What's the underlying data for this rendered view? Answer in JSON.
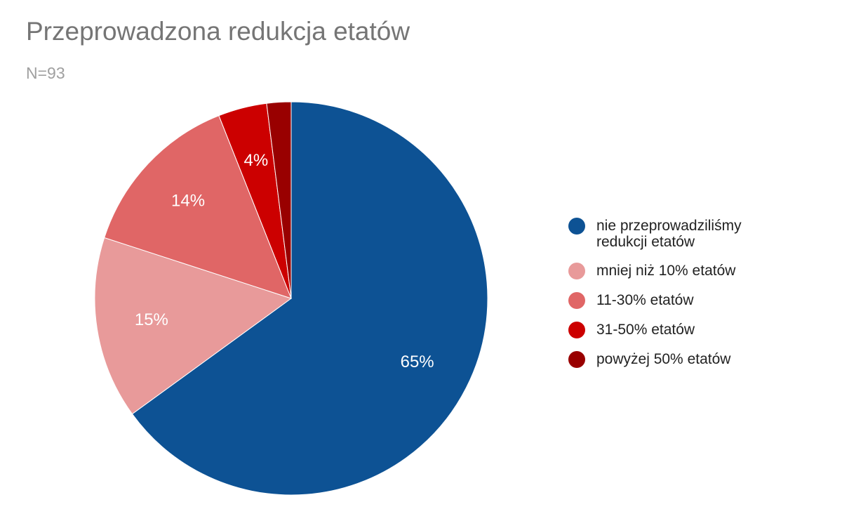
{
  "chart_data": {
    "type": "pie",
    "title": "Przeprowadzona redukcja etatów",
    "subtitle": "N=93",
    "categories": [
      "nie przeprowadziliśmy redukcji etatów",
      "mniej niż 10% etatów",
      "11-30% etatów",
      "31-50% etatów",
      "powyżej 50% etatów"
    ],
    "values": [
      65,
      15,
      14,
      4,
      2
    ],
    "value_labels": [
      "65%",
      "15%",
      "14%",
      "4%",
      null
    ],
    "colors": [
      "#0d5294",
      "#e89a9a",
      "#e06666",
      "#cc0000",
      "#990000"
    ]
  }
}
